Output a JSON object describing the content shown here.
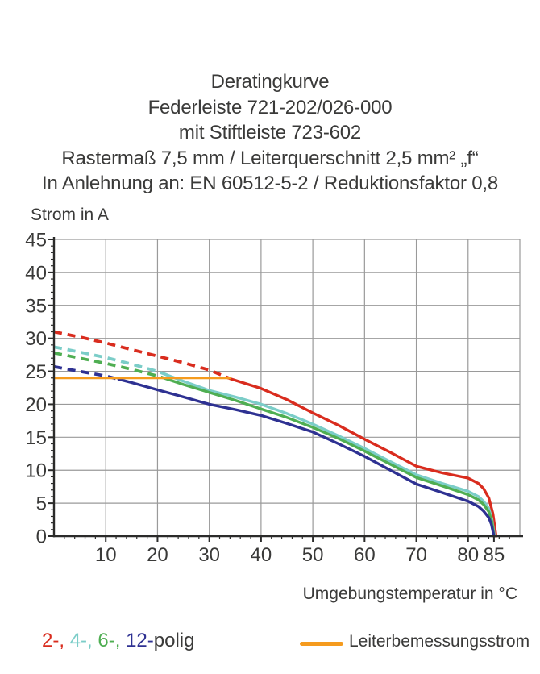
{
  "title": {
    "lines": [
      "Deratingkurve",
      "Federleiste 721-202/026-000",
      "mit Stiftleiste 723-602",
      "Rastermaß 7,5 mm / Leiterquerschnitt 2,5 mm² „f“",
      "In Anlehnung an: EN 60512-5-2 / Reduktionsfaktor 0,8"
    ]
  },
  "chart_data": {
    "type": "line",
    "ylabel": "Strom in A",
    "xlabel": "Umgebungstemperatur in °C",
    "xlim": [
      0,
      90
    ],
    "ylim": [
      0,
      45
    ],
    "x_major_ticks": [
      10,
      20,
      30,
      40,
      50,
      60,
      70,
      80,
      85
    ],
    "x_minor_tick_step": 2,
    "y_major_ticks": [
      0,
      5,
      10,
      15,
      20,
      25,
      30,
      35,
      40,
      45
    ],
    "y_minor_tick_step": 1,
    "grid": {
      "color": "#9a9a9a",
      "x_lines": [
        10,
        20,
        30,
        40,
        50,
        60,
        70,
        80,
        90
      ],
      "y_lines": [
        5,
        10,
        15,
        20,
        25,
        30,
        35,
        40,
        45
      ]
    },
    "axis_color": "#2b2b2a",
    "tick_label_color": "#3a3a39",
    "reference_line": {
      "name": "Leiterbemessungsstrom",
      "value_a": 24,
      "x_start_c": 0,
      "x_end_c": 34,
      "color": "#f59b1e"
    },
    "series": [
      {
        "name": "2-polig",
        "color": "#d92c1e",
        "style_note": "dashed above rated current, solid below",
        "dashed_until_c": 33.8,
        "points": [
          [
            0,
            31
          ],
          [
            5,
            30.2
          ],
          [
            10,
            29.3
          ],
          [
            15,
            28.3
          ],
          [
            20,
            27.3
          ],
          [
            25,
            26.3
          ],
          [
            30,
            25.2
          ],
          [
            34,
            23.9
          ],
          [
            40,
            22.4
          ],
          [
            45,
            20.7
          ],
          [
            50,
            18.7
          ],
          [
            55,
            16.8
          ],
          [
            60,
            14.7
          ],
          [
            65,
            12.7
          ],
          [
            70,
            10.6
          ],
          [
            75,
            9.6
          ],
          [
            80,
            8.8
          ],
          [
            82,
            8.0
          ],
          [
            83,
            7.2
          ],
          [
            84,
            5.8
          ],
          [
            84.8,
            3.4
          ],
          [
            85.4,
            0
          ]
        ]
      },
      {
        "name": "4-polig",
        "color": "#7bcdc8",
        "style_note": "dashed above rated current, solid below",
        "dashed_until_c": 22,
        "points": [
          [
            0,
            28.7
          ],
          [
            5,
            27.9
          ],
          [
            10,
            27.1
          ],
          [
            15,
            26.1
          ],
          [
            20,
            25.0
          ],
          [
            25,
            23.5
          ],
          [
            30,
            22.1
          ],
          [
            35,
            21.1
          ],
          [
            40,
            20.0
          ],
          [
            45,
            18.6
          ],
          [
            50,
            17.0
          ],
          [
            55,
            15.2
          ],
          [
            60,
            13.3
          ],
          [
            65,
            11.3
          ],
          [
            70,
            9.3
          ],
          [
            75,
            8.0
          ],
          [
            80,
            6.8
          ],
          [
            82,
            6.0
          ],
          [
            83,
            5.3
          ],
          [
            84,
            4.2
          ],
          [
            84.6,
            2.6
          ],
          [
            85.1,
            0
          ]
        ]
      },
      {
        "name": "6-polig",
        "color": "#4fae52",
        "style_note": "dashed above rated current, solid below",
        "dashed_until_c": 21,
        "points": [
          [
            0,
            27.8
          ],
          [
            5,
            27.0
          ],
          [
            10,
            26.2
          ],
          [
            15,
            25.3
          ],
          [
            20,
            24.3
          ],
          [
            25,
            23.0
          ],
          [
            30,
            21.8
          ],
          [
            35,
            20.6
          ],
          [
            40,
            19.3
          ],
          [
            45,
            18.0
          ],
          [
            50,
            16.5
          ],
          [
            55,
            14.8
          ],
          [
            60,
            12.9
          ],
          [
            65,
            10.9
          ],
          [
            70,
            8.9
          ],
          [
            75,
            7.6
          ],
          [
            80,
            6.3
          ],
          [
            82,
            5.5
          ],
          [
            83,
            4.8
          ],
          [
            84,
            3.7
          ],
          [
            84.6,
            2.2
          ],
          [
            85,
            0
          ]
        ]
      },
      {
        "name": "12-polig",
        "color": "#2e3192",
        "style_note": "dashed above rated current, solid below",
        "dashed_until_c": 12.5,
        "points": [
          [
            0,
            25.7
          ],
          [
            5,
            25.0
          ],
          [
            10,
            24.3
          ],
          [
            15,
            23.3
          ],
          [
            20,
            22.2
          ],
          [
            25,
            21.1
          ],
          [
            30,
            20.0
          ],
          [
            35,
            19.2
          ],
          [
            40,
            18.3
          ],
          [
            45,
            17.1
          ],
          [
            50,
            15.8
          ],
          [
            55,
            14.0
          ],
          [
            60,
            12.1
          ],
          [
            65,
            10.0
          ],
          [
            70,
            7.9
          ],
          [
            75,
            6.6
          ],
          [
            80,
            5.3
          ],
          [
            82,
            4.5
          ],
          [
            83,
            3.8
          ],
          [
            84,
            2.8
          ],
          [
            84.5,
            1.8
          ],
          [
            85,
            0
          ]
        ]
      }
    ]
  },
  "legend": {
    "poles": {
      "parts": [
        {
          "text": "2-, ",
          "color": "#d92c1e"
        },
        {
          "text": "4-, ",
          "color": "#7bcdc8"
        },
        {
          "text": "6-, ",
          "color": "#4fae52"
        },
        {
          "text": "12-",
          "color": "#2e3192"
        },
        {
          "text": "polig",
          "color": "#3a3a39"
        }
      ]
    },
    "reference": {
      "label": "Leiterbemessungsstrom",
      "swatch_color": "#f59b1e"
    }
  }
}
